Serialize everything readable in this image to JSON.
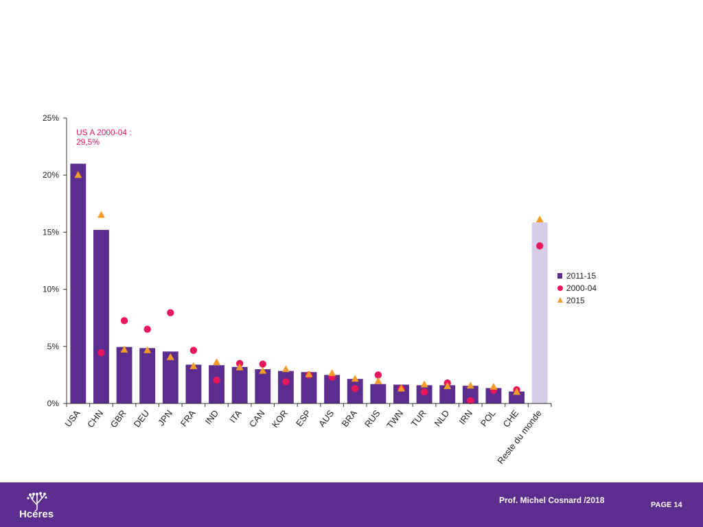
{
  "chart_data": {
    "type": "bar",
    "categories": [
      "USA",
      "CHN",
      "GBR",
      "DEU",
      "JPN",
      "FRA",
      "IND",
      "ITA",
      "CAN",
      "KOR",
      "ESP",
      "AUS",
      "BRA",
      "RUS",
      "TWN",
      "TUR",
      "NLD",
      "IRN",
      "POL",
      "CHE",
      "Reste du monde"
    ],
    "series": [
      {
        "name": "2011-15",
        "marker": "bar",
        "color": "#5b2d8e",
        "highlight_color": "#d8cde8",
        "highlight_index": 20,
        "values": [
          21.0,
          15.2,
          4.95,
          4.85,
          4.55,
          3.4,
          3.35,
          3.2,
          3.0,
          2.85,
          2.75,
          2.5,
          2.15,
          1.7,
          1.65,
          1.6,
          1.6,
          1.55,
          1.35,
          1.05,
          15.85
        ]
      },
      {
        "name": "2000-04",
        "marker": "circle",
        "color": "#e8175d",
        "values": [
          null,
          4.45,
          7.25,
          6.5,
          7.95,
          4.65,
          2.05,
          3.5,
          3.45,
          1.9,
          2.5,
          2.3,
          1.3,
          2.5,
          1.3,
          1.0,
          1.8,
          0.25,
          1.15,
          1.2,
          13.8
        ]
      },
      {
        "name": "2015",
        "marker": "triangle",
        "color": "#f39c2a",
        "values": [
          20.0,
          16.5,
          4.7,
          4.65,
          4.05,
          3.25,
          3.6,
          3.15,
          2.85,
          3.0,
          2.55,
          2.65,
          2.15,
          1.95,
          1.3,
          1.65,
          1.5,
          1.55,
          1.45,
          1.0,
          16.1
        ]
      }
    ],
    "ylim": [
      0,
      25
    ],
    "yticks": [
      0,
      5,
      10,
      15,
      20,
      25
    ],
    "ytick_labels": [
      "0%",
      "5%",
      "10%",
      "15%",
      "20%",
      "25%"
    ],
    "legend_position": "right",
    "annotation": {
      "line1": "US A 2000-04 :",
      "line2": "29,5%"
    }
  },
  "footer": {
    "logo_text": "Hcéres",
    "author": "Prof. Michel Cosnard /2018",
    "page": "PAGE 14"
  }
}
